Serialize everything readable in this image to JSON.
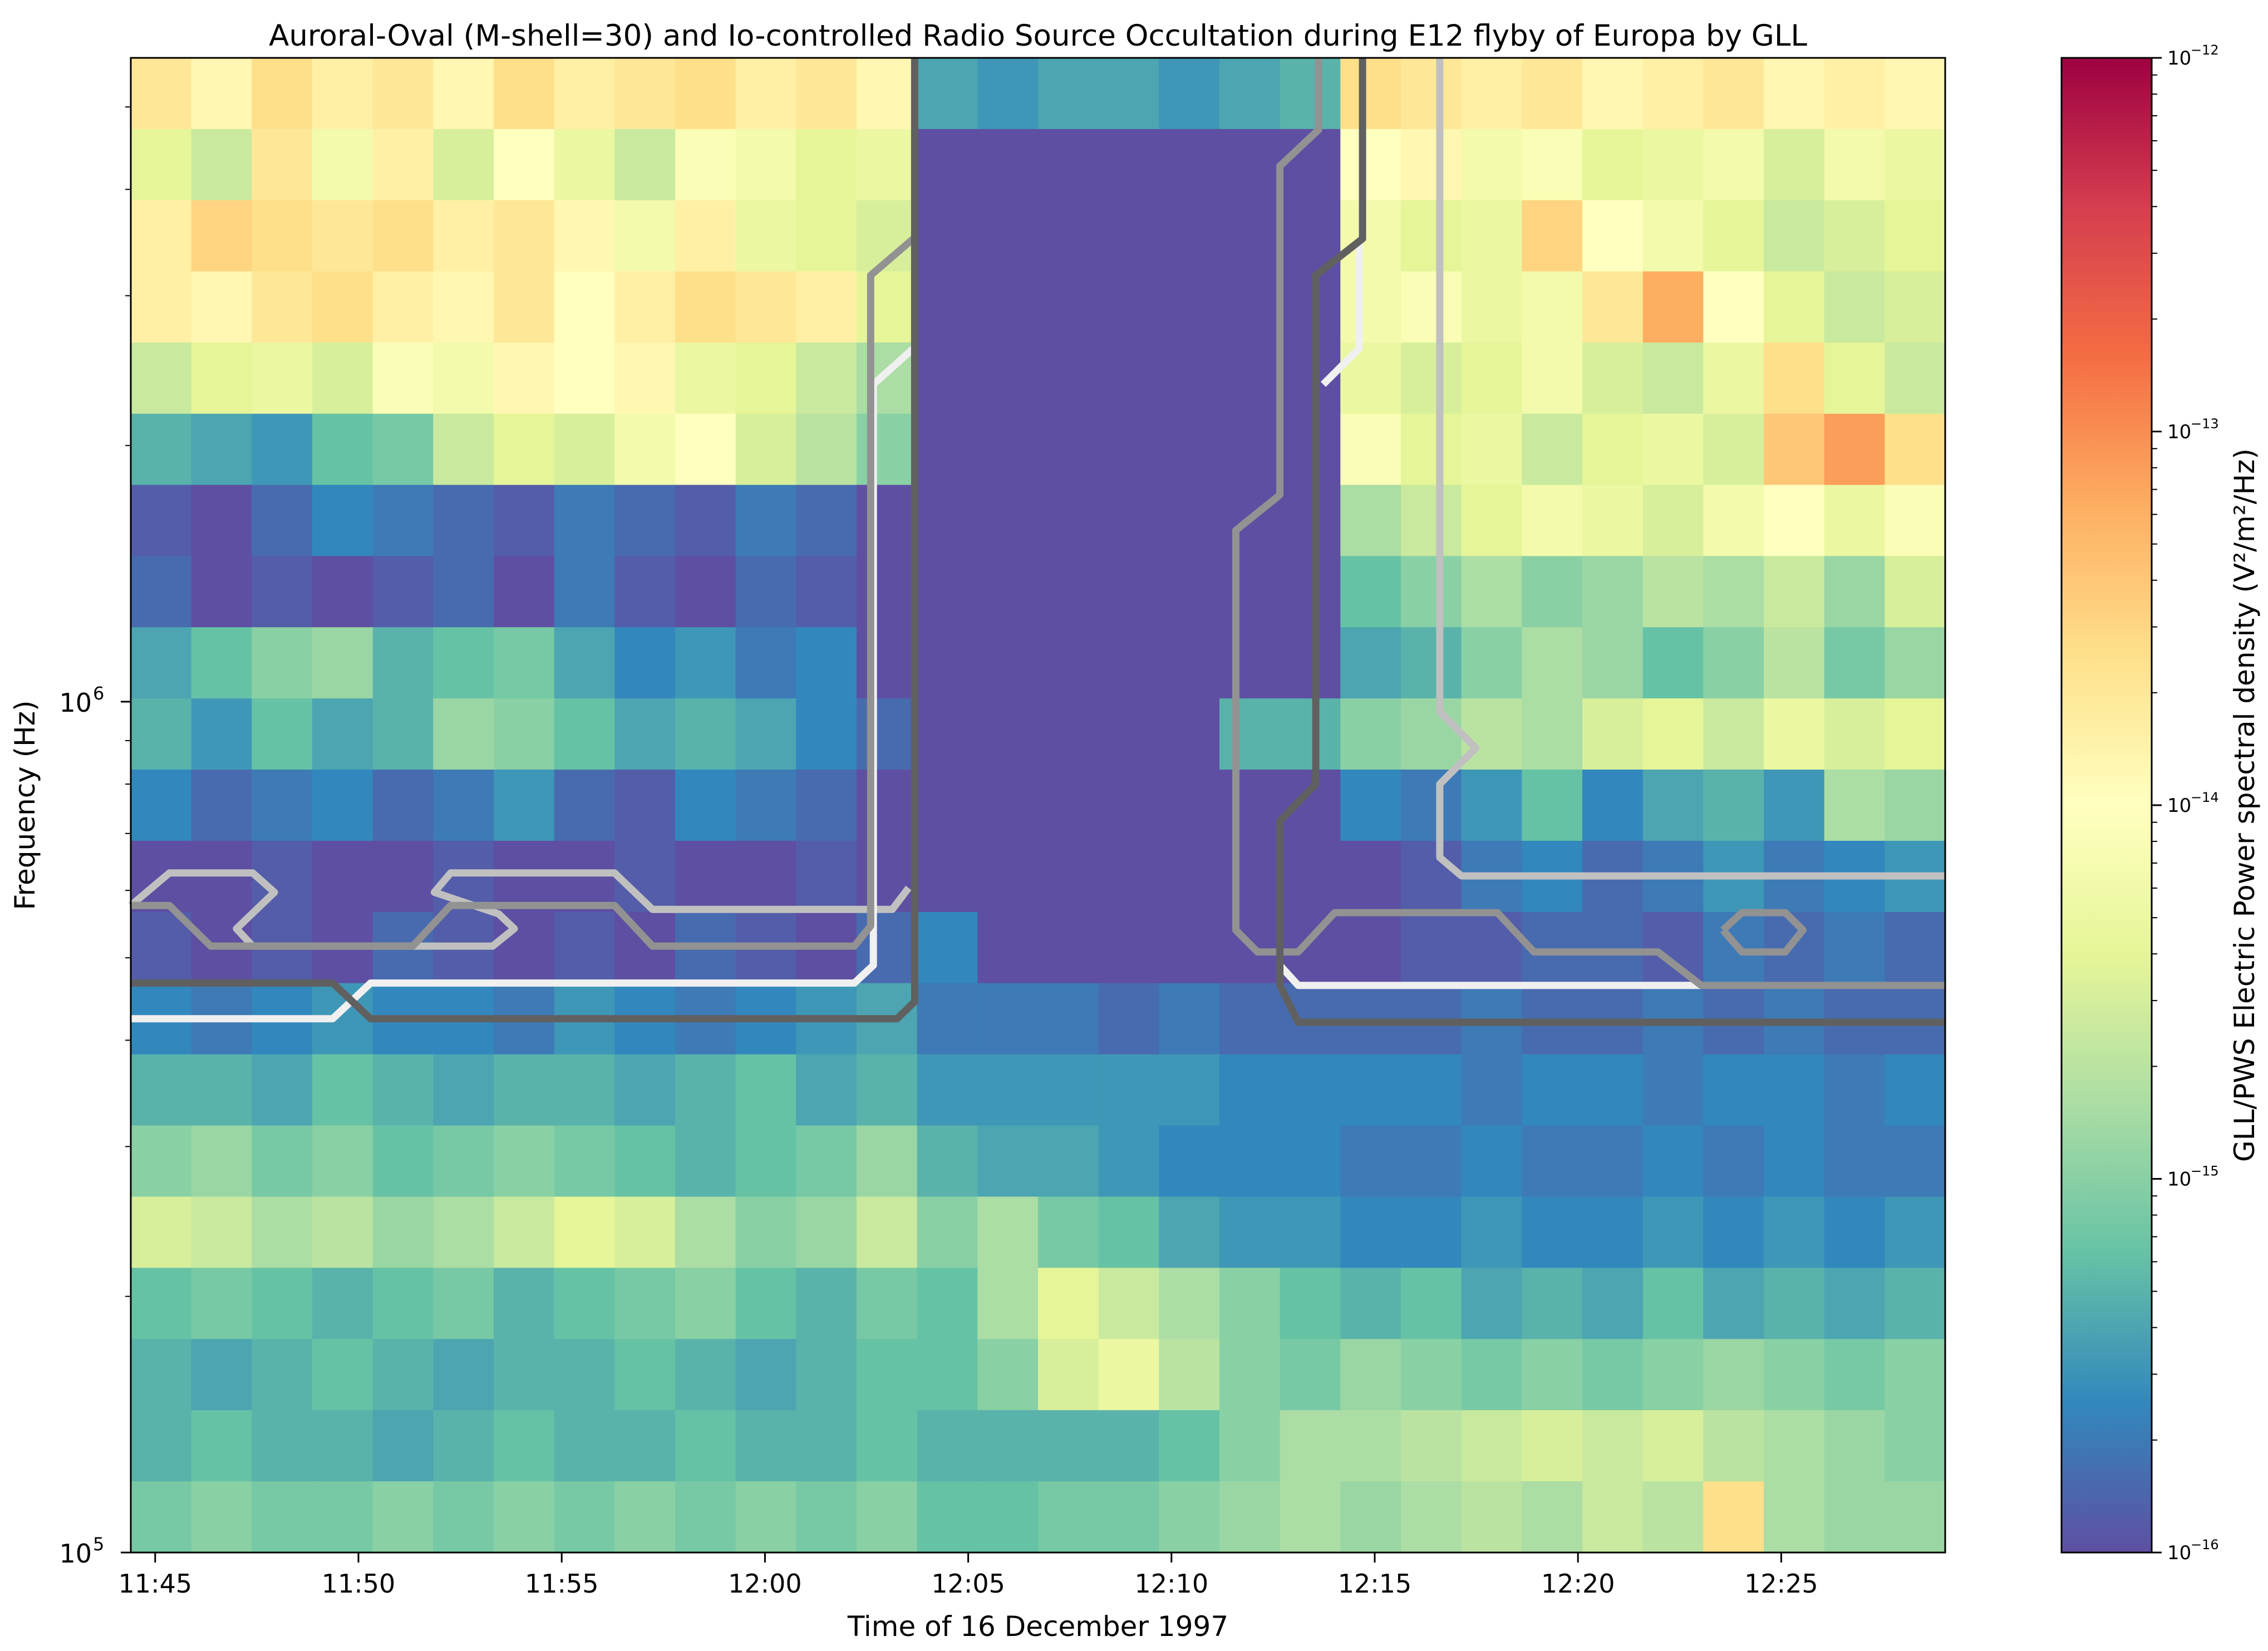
{
  "chart_data": {
    "type": "heatmap",
    "title": "Auroral-Oval (M-shell=30) and Io-controlled Radio Source Occultation during E12 flyby of Europa by GLL",
    "xlabel": "Time of 16 December 1997",
    "ylabel": "Frequency (Hz)",
    "colorbar_label": "GLL/PWS Electric Power spectral density (V²/m²/Hz)",
    "colormap": "Spectral_r",
    "colormap_stops": [
      "#5e4fa2",
      "#3288bd",
      "#66c2a5",
      "#abdda4",
      "#e6f598",
      "#ffffbf",
      "#fee08b",
      "#fdae61",
      "#f46d43",
      "#d53e4f",
      "#9e0142"
    ],
    "color_scale": "log",
    "clim": [
      1e-16,
      1e-12
    ],
    "colorbar_ticks": [
      {
        "base": "10",
        "exp": "−12",
        "value": -12
      },
      {
        "base": "10",
        "exp": "−13",
        "value": -13
      },
      {
        "base": "10",
        "exp": "−14",
        "value": -14
      },
      {
        "base": "10",
        "exp": "−15",
        "value": -15
      },
      {
        "base": "10",
        "exp": "−16",
        "value": -16
      }
    ],
    "xlim": [
      "11:44:24",
      "12:29:02"
    ],
    "ylim": [
      100000,
      5710000
    ],
    "y_scale": "log",
    "x_ticks": [
      {
        "time": "11:45:00",
        "label": "11:45"
      },
      {
        "time": "11:50:00",
        "label": "11:50"
      },
      {
        "time": "11:55:00",
        "label": "11:55"
      },
      {
        "time": "12:00:00",
        "label": "12:00"
      },
      {
        "time": "12:05:00",
        "label": "12:05"
      },
      {
        "time": "12:10:00",
        "label": "12:10"
      },
      {
        "time": "12:15:00",
        "label": "12:15"
      },
      {
        "time": "12:20:00",
        "label": "12:20"
      },
      {
        "time": "12:25:00",
        "label": "12:25"
      }
    ],
    "y_ticks": [
      {
        "value": 100000,
        "base": "10",
        "exp": "5"
      },
      {
        "value": 1000000,
        "base": "10",
        "exp": "6"
      }
    ],
    "row_center_freqs_hz": [
      5190000,
      4280000,
      3530000,
      2910000,
      2400000,
      1980000,
      1630000,
      1350000,
      1110000,
      916000,
      757000,
      624000,
      514000,
      425000,
      350000,
      288000,
      238000,
      196000,
      162000,
      134000,
      110000
    ],
    "log10_psd": [
      [
        -13.7,
        -13.9,
        -13.6,
        -13.8,
        -13.7,
        -13.9,
        -13.6,
        -13.8,
        -13.7,
        -13.6,
        -13.8,
        -13.7,
        -13.9,
        -15.4,
        -15.5,
        -15.4,
        -15.4,
        -15.5,
        -15.4,
        -15.3,
        -13.6,
        -13.7,
        -13.8,
        -13.7,
        -13.9,
        -13.8,
        -13.7,
        -13.9,
        -13.8,
        -13.9
      ],
      [
        -14.4,
        -14.6,
        -13.7,
        -14.2,
        -13.8,
        -14.5,
        -14.0,
        -14.3,
        -14.6,
        -14.1,
        -14.2,
        -14.4,
        -14.3,
        -16,
        -16,
        -16,
        -16,
        -16,
        -16,
        -16,
        -14.0,
        -13.9,
        -14.2,
        -14.1,
        -14.4,
        -14.3,
        -14.2,
        -14.5,
        -14.2,
        -14.3
      ],
      [
        -13.8,
        -13.5,
        -13.6,
        -13.7,
        -13.6,
        -13.8,
        -13.7,
        -13.9,
        -14.2,
        -13.8,
        -14.3,
        -14.4,
        -14.5,
        -16,
        -16,
        -16,
        -16,
        -16,
        -16,
        -16,
        -14.2,
        -14.4,
        -14.3,
        -13.5,
        -14.0,
        -14.2,
        -14.4,
        -14.6,
        -14.5,
        -14.4
      ],
      [
        -13.8,
        -13.9,
        -13.7,
        -13.6,
        -13.8,
        -13.9,
        -13.7,
        -14.0,
        -13.8,
        -13.6,
        -13.7,
        -13.8,
        -14.4,
        -16,
        -16,
        -16,
        -16,
        -16,
        -16,
        -16,
        -14.2,
        -14.1,
        -14.3,
        -14.2,
        -13.7,
        -13.2,
        -14.0,
        -14.4,
        -14.6,
        -14.5
      ],
      [
        -14.6,
        -14.4,
        -14.3,
        -14.5,
        -14.1,
        -14.2,
        -13.9,
        -14.0,
        -13.9,
        -14.3,
        -14.4,
        -14.6,
        -14.8,
        -16,
        -16,
        -16,
        -16,
        -16,
        -16,
        -16,
        -14.3,
        -14.5,
        -14.4,
        -14.2,
        -14.5,
        -14.6,
        -14.3,
        -13.6,
        -14.4,
        -14.6
      ],
      [
        -15.3,
        -15.4,
        -15.5,
        -15.2,
        -15.1,
        -14.6,
        -14.4,
        -14.5,
        -14.2,
        -14.0,
        -14.5,
        -14.7,
        -15.0,
        -16,
        -16,
        -16,
        -16,
        -16,
        -16,
        -16,
        -14.1,
        -14.4,
        -14.3,
        -14.6,
        -14.4,
        -14.3,
        -14.5,
        -13.4,
        -13.1,
        -13.6
      ],
      [
        -15.9,
        -16,
        -15.8,
        -15.6,
        -15.7,
        -15.8,
        -15.9,
        -15.7,
        -15.8,
        -15.9,
        -15.7,
        -15.8,
        -16,
        -16,
        -16,
        -16,
        -16,
        -16,
        -16,
        -16,
        -14.8,
        -14.6,
        -14.4,
        -14.2,
        -14.3,
        -14.5,
        -14.2,
        -14.0,
        -14.3,
        -14.1
      ],
      [
        -15.8,
        -16,
        -15.9,
        -16,
        -15.9,
        -15.8,
        -16,
        -15.7,
        -15.9,
        -16,
        -15.8,
        -15.9,
        -16,
        -16,
        -16,
        -16,
        -16,
        -16,
        -16,
        -16,
        -15.2,
        -15.0,
        -14.8,
        -15.0,
        -14.9,
        -14.7,
        -14.8,
        -14.6,
        -14.9,
        -14.5
      ],
      [
        -15.4,
        -15.2,
        -15.0,
        -14.9,
        -15.3,
        -15.2,
        -15.1,
        -15.4,
        -15.6,
        -15.5,
        -15.7,
        -15.6,
        -16,
        -16,
        -16,
        -16,
        -16,
        -16,
        -16,
        -16,
        -15.4,
        -15.3,
        -15.0,
        -14.8,
        -14.9,
        -15.2,
        -15.0,
        -14.7,
        -15.1,
        -14.9
      ],
      [
        -15.3,
        -15.5,
        -15.2,
        -15.4,
        -15.3,
        -14.9,
        -15.0,
        -15.2,
        -15.4,
        -15.3,
        -15.4,
        -15.6,
        -15.8,
        -16,
        -16,
        -16,
        -16,
        -16,
        -15.3,
        -15.3,
        -15.0,
        -14.9,
        -14.7,
        -14.8,
        -14.5,
        -14.4,
        -14.6,
        -14.3,
        -14.5,
        -14.4
      ],
      [
        -15.6,
        -15.8,
        -15.7,
        -15.6,
        -15.8,
        -15.7,
        -15.5,
        -15.8,
        -15.9,
        -15.6,
        -15.7,
        -15.8,
        -16,
        -16,
        -16,
        -16,
        -16,
        -16,
        -16,
        -16,
        -15.6,
        -15.7,
        -15.5,
        -15.2,
        -15.6,
        -15.4,
        -15.3,
        -15.5,
        -14.8,
        -14.9
      ],
      [
        -16,
        -16,
        -15.9,
        -16,
        -16,
        -15.9,
        -16,
        -16,
        -15.9,
        -16,
        -16,
        -15.9,
        -16,
        -16,
        -16,
        -16,
        -16,
        -16,
        -16,
        -16,
        -16,
        -15.9,
        -15.7,
        -15.6,
        -15.8,
        -15.7,
        -15.5,
        -15.7,
        -15.6,
        -15.5
      ],
      [
        -15.9,
        -16,
        -15.9,
        -16,
        -15.8,
        -15.9,
        -16,
        -15.9,
        -16,
        -15.8,
        -15.9,
        -16,
        -15.8,
        -15.6,
        -16,
        -16,
        -16,
        -16,
        -16,
        -16,
        -16,
        -15.9,
        -15.9,
        -15.8,
        -15.8,
        -15.9,
        -15.7,
        -15.8,
        -15.7,
        -15.8
      ],
      [
        -15.6,
        -15.7,
        -15.6,
        -15.5,
        -15.6,
        -15.6,
        -15.7,
        -15.5,
        -15.6,
        -15.7,
        -15.6,
        -15.5,
        -15.4,
        -15.7,
        -15.7,
        -15.7,
        -15.8,
        -15.7,
        -15.8,
        -15.8,
        -15.8,
        -15.8,
        -15.7,
        -15.8,
        -15.8,
        -15.7,
        -15.8,
        -15.7,
        -15.8,
        -15.8
      ],
      [
        -15.3,
        -15.3,
        -15.4,
        -15.2,
        -15.3,
        -15.4,
        -15.3,
        -15.3,
        -15.4,
        -15.3,
        -15.2,
        -15.4,
        -15.3,
        -15.5,
        -15.5,
        -15.5,
        -15.5,
        -15.5,
        -15.6,
        -15.6,
        -15.6,
        -15.6,
        -15.7,
        -15.6,
        -15.6,
        -15.7,
        -15.6,
        -15.6,
        -15.7,
        -15.6
      ],
      [
        -15.0,
        -14.9,
        -15.1,
        -15.0,
        -15.2,
        -15.1,
        -15.0,
        -15.1,
        -15.2,
        -15.3,
        -15.2,
        -15.1,
        -14.9,
        -15.3,
        -15.4,
        -15.4,
        -15.5,
        -15.6,
        -15.6,
        -15.6,
        -15.7,
        -15.7,
        -15.6,
        -15.7,
        -15.7,
        -15.6,
        -15.7,
        -15.6,
        -15.7,
        -15.7
      ],
      [
        -14.5,
        -14.6,
        -14.8,
        -14.7,
        -14.9,
        -14.8,
        -14.6,
        -14.4,
        -14.5,
        -14.8,
        -15.0,
        -14.9,
        -14.6,
        -15.0,
        -14.8,
        -15.1,
        -15.2,
        -15.4,
        -15.5,
        -15.5,
        -15.6,
        -15.6,
        -15.5,
        -15.6,
        -15.6,
        -15.5,
        -15.6,
        -15.5,
        -15.6,
        -15.5
      ],
      [
        -15.2,
        -15.1,
        -15.2,
        -15.3,
        -15.2,
        -15.1,
        -15.3,
        -15.2,
        -15.1,
        -15.0,
        -15.2,
        -15.3,
        -15.1,
        -15.2,
        -14.8,
        -14.4,
        -14.6,
        -14.8,
        -15.0,
        -15.2,
        -15.3,
        -15.2,
        -15.4,
        -15.3,
        -15.4,
        -15.2,
        -15.4,
        -15.3,
        -15.4,
        -15.3
      ],
      [
        -15.3,
        -15.4,
        -15.3,
        -15.2,
        -15.3,
        -15.4,
        -15.3,
        -15.3,
        -15.2,
        -15.3,
        -15.4,
        -15.3,
        -15.2,
        -15.2,
        -15.0,
        -14.5,
        -14.3,
        -14.7,
        -15.0,
        -15.1,
        -14.9,
        -15.0,
        -15.1,
        -15.0,
        -15.1,
        -15.0,
        -14.9,
        -15.0,
        -15.1,
        -15.0
      ],
      [
        -15.3,
        -15.2,
        -15.3,
        -15.3,
        -15.4,
        -15.3,
        -15.2,
        -15.3,
        -15.3,
        -15.2,
        -15.3,
        -15.3,
        -15.2,
        -15.3,
        -15.3,
        -15.3,
        -15.3,
        -15.2,
        -15.0,
        -14.8,
        -14.8,
        -14.7,
        -14.6,
        -14.5,
        -14.6,
        -14.5,
        -14.7,
        -14.8,
        -14.9,
        -15.0
      ],
      [
        -15.1,
        -15.0,
        -15.1,
        -15.1,
        -15.0,
        -15.1,
        -15.0,
        -15.1,
        -15.0,
        -15.1,
        -15.0,
        -15.1,
        -15.0,
        -15.2,
        -15.2,
        -15.1,
        -15.1,
        -15.0,
        -14.9,
        -14.8,
        -14.9,
        -14.8,
        -14.7,
        -14.8,
        -14.6,
        -14.7,
        -13.6,
        -14.8,
        -14.9,
        -14.9
      ]
    ],
    "contours": [
      {
        "color": "#c0c0c0",
        "segments": [
          [
            [
              "11:44:24",
              576000
            ],
            [
              "11:45:21",
              629000
            ],
            [
              "11:47:24",
              629000
            ],
            [
              "11:47:56",
              597000
            ],
            [
              "11:47:00",
              541000
            ],
            [
              "11:47:24",
              516000
            ],
            [
              "11:53:18",
              516000
            ],
            [
              "11:53:50",
              541000
            ],
            [
              "11:53:27",
              563000
            ],
            [
              "11:51:52",
              597000
            ],
            [
              "11:52:16",
              629000
            ],
            [
              "11:56:18",
              629000
            ],
            [
              "11:57:14",
              570000
            ],
            [
              "12:03:08",
              570000
            ],
            [
              "12:03:32",
              604000
            ]
          ],
          [
            [
              "12:16:36",
              5710000
            ],
            [
              "12:16:36",
              973000
            ],
            [
              "12:17:29",
              882000
            ],
            [
              "12:16:36",
              800000
            ],
            [
              "12:16:36",
              656000
            ],
            [
              "12:17:08",
              624000
            ],
            [
              "12:29:02",
              624000
            ]
          ]
        ]
      },
      {
        "color": "#f0f0f0",
        "segments": [
          [
            [
              "11:44:24",
              424000
            ],
            [
              "11:49:22",
              424000
            ],
            [
              "11:50:18",
              467000
            ],
            [
              "12:02:12",
              467000
            ],
            [
              "12:02:40",
              490000
            ],
            [
              "12:02:40",
              2360000
            ],
            [
              "12:03:39",
              2600000
            ]
          ],
          [
            [
              "12:12:40",
              490000
            ],
            [
              "12:13:07",
              464000
            ],
            [
              "12:23:02",
              464000
            ]
          ],
          [
            [
              "12:13:44",
              2360000
            ],
            [
              "12:14:37",
              2600000
            ],
            [
              "12:14:37",
              3500000
            ]
          ]
        ]
      },
      {
        "color": "#929292",
        "segments": [
          [
            [
              "11:44:24",
              576000
            ],
            [
              "11:45:21",
              576000
            ],
            [
              "11:46:22",
              516000
            ],
            [
              "11:51:20",
              516000
            ],
            [
              "11:52:16",
              576000
            ],
            [
              "11:56:18",
              576000
            ],
            [
              "11:57:14",
              516000
            ],
            [
              "12:02:12",
              516000
            ],
            [
              "12:02:36",
              545000
            ],
            [
              "12:02:36",
              3170000
            ],
            [
              "12:03:39",
              3500000
            ]
          ],
          [
            [
              "12:13:37",
              5710000
            ],
            [
              "12:13:37",
              4700000
            ],
            [
              "12:12:40",
              4260000
            ],
            [
              "12:12:40",
              1750000
            ],
            [
              "12:11:35",
              1590000
            ],
            [
              "12:11:35",
              539000
            ],
            [
              "12:12:07",
              508000
            ],
            [
              "12:13:07",
              508000
            ],
            [
              "12:14:01",
              565000
            ],
            [
              "12:18:01",
              565000
            ],
            [
              "12:18:55",
              508000
            ],
            [
              "12:21:58",
              508000
            ],
            [
              "12:23:02",
              464000
            ],
            [
              "12:29:02",
              464000
            ]
          ],
          [
            [
              "12:23:34",
              539000
            ],
            [
              "12:24:02",
              565000
            ],
            [
              "12:25:06",
              565000
            ],
            [
              "12:25:32",
              539000
            ],
            [
              "12:25:06",
              508000
            ],
            [
              "12:24:02",
              508000
            ],
            [
              "12:23:34",
              539000
            ]
          ]
        ]
      },
      {
        "color": "#606060",
        "segments": [
          [
            [
              "11:44:24",
              467000
            ],
            [
              "11:49:22",
              467000
            ],
            [
              "11:50:18",
              424000
            ],
            [
              "12:03:15",
              424000
            ],
            [
              "12:03:41",
              444000
            ],
            [
              "12:03:41",
              5710000
            ]
          ],
          [
            [
              "12:14:42",
              5710000
            ],
            [
              "12:14:42",
              3500000
            ],
            [
              "12:13:33",
              3170000
            ],
            [
              "12:13:33",
              800000
            ],
            [
              "12:12:40",
              724000
            ],
            [
              "12:12:40",
              464000
            ],
            [
              "12:13:07",
              420000
            ],
            [
              "12:29:02",
              420000
            ]
          ]
        ]
      }
    ]
  }
}
